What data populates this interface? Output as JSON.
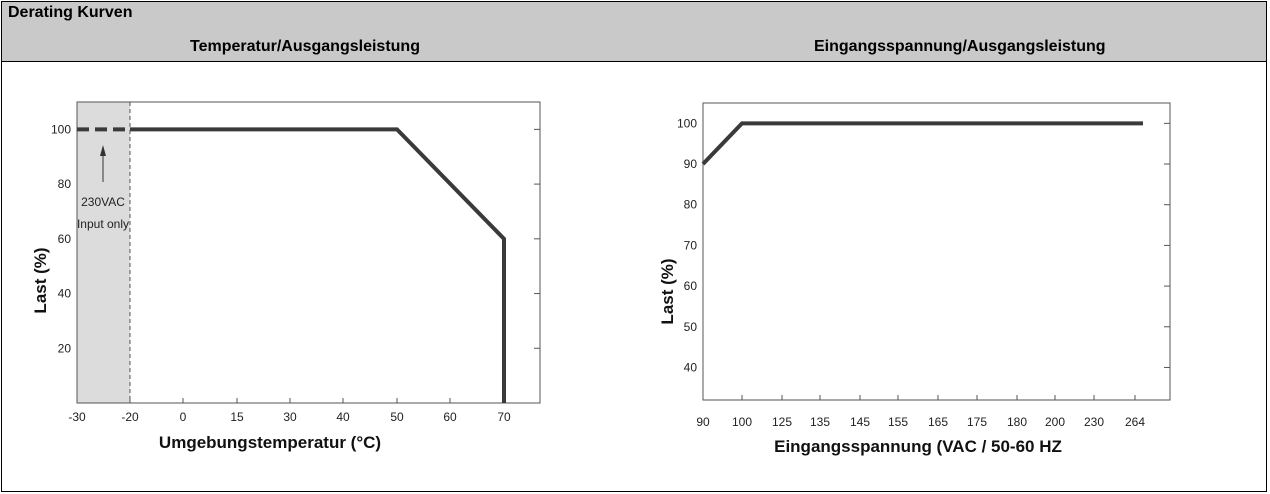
{
  "header": {
    "section_title": "Derating Kurven",
    "left_title": "Temperatur/Ausgangsleistung",
    "right_title": "Eingangsspannung/Ausgangsleistung"
  },
  "chart_data": [
    {
      "type": "line",
      "title": "Temperatur/Ausgangsleistung",
      "xlabel": "Umgebungstemperatur (°C)",
      "ylabel": "Last (%)",
      "x_ticks": [
        "-30",
        "-20",
        "0",
        "15",
        "30",
        "40",
        "50",
        "60",
        "70"
      ],
      "y_ticks": [
        "20",
        "40",
        "60",
        "80",
        "100"
      ],
      "ylim": [
        0,
        110
      ],
      "series": [
        {
          "style": "dashed",
          "x": [
            "-30",
            "-20"
          ],
          "y": [
            100,
            100
          ]
        },
        {
          "style": "solid",
          "x": [
            "-20",
            "50",
            "70",
            "70"
          ],
          "y": [
            100,
            100,
            60,
            0
          ]
        }
      ],
      "annotation": {
        "lines": [
          "230VAC",
          "Input only"
        ]
      },
      "shaded_region": [
        "-30",
        "-20"
      ],
      "grid": false
    },
    {
      "type": "line",
      "title": "Eingangsspannung/Ausgangsleistung",
      "xlabel": "Eingangsspannung (VAC / 50-60 HZ",
      "ylabel": "Last (%)",
      "x_ticks": [
        "90",
        "100",
        "125",
        "135",
        "145",
        "155",
        "165",
        "175",
        "180",
        "200",
        "230",
        "264"
      ],
      "y_ticks": [
        "40",
        "50",
        "60",
        "70",
        "80",
        "90",
        "100"
      ],
      "ylim": [
        32,
        105
      ],
      "series": [
        {
          "style": "solid",
          "x": [
            "90",
            "100",
            "264"
          ],
          "y": [
            90,
            100,
            100
          ]
        }
      ],
      "grid": false
    }
  ],
  "colors": {
    "header_bg": "#c9c9c9",
    "line": "#3a3a3a",
    "shade": "#dcdcdc"
  }
}
